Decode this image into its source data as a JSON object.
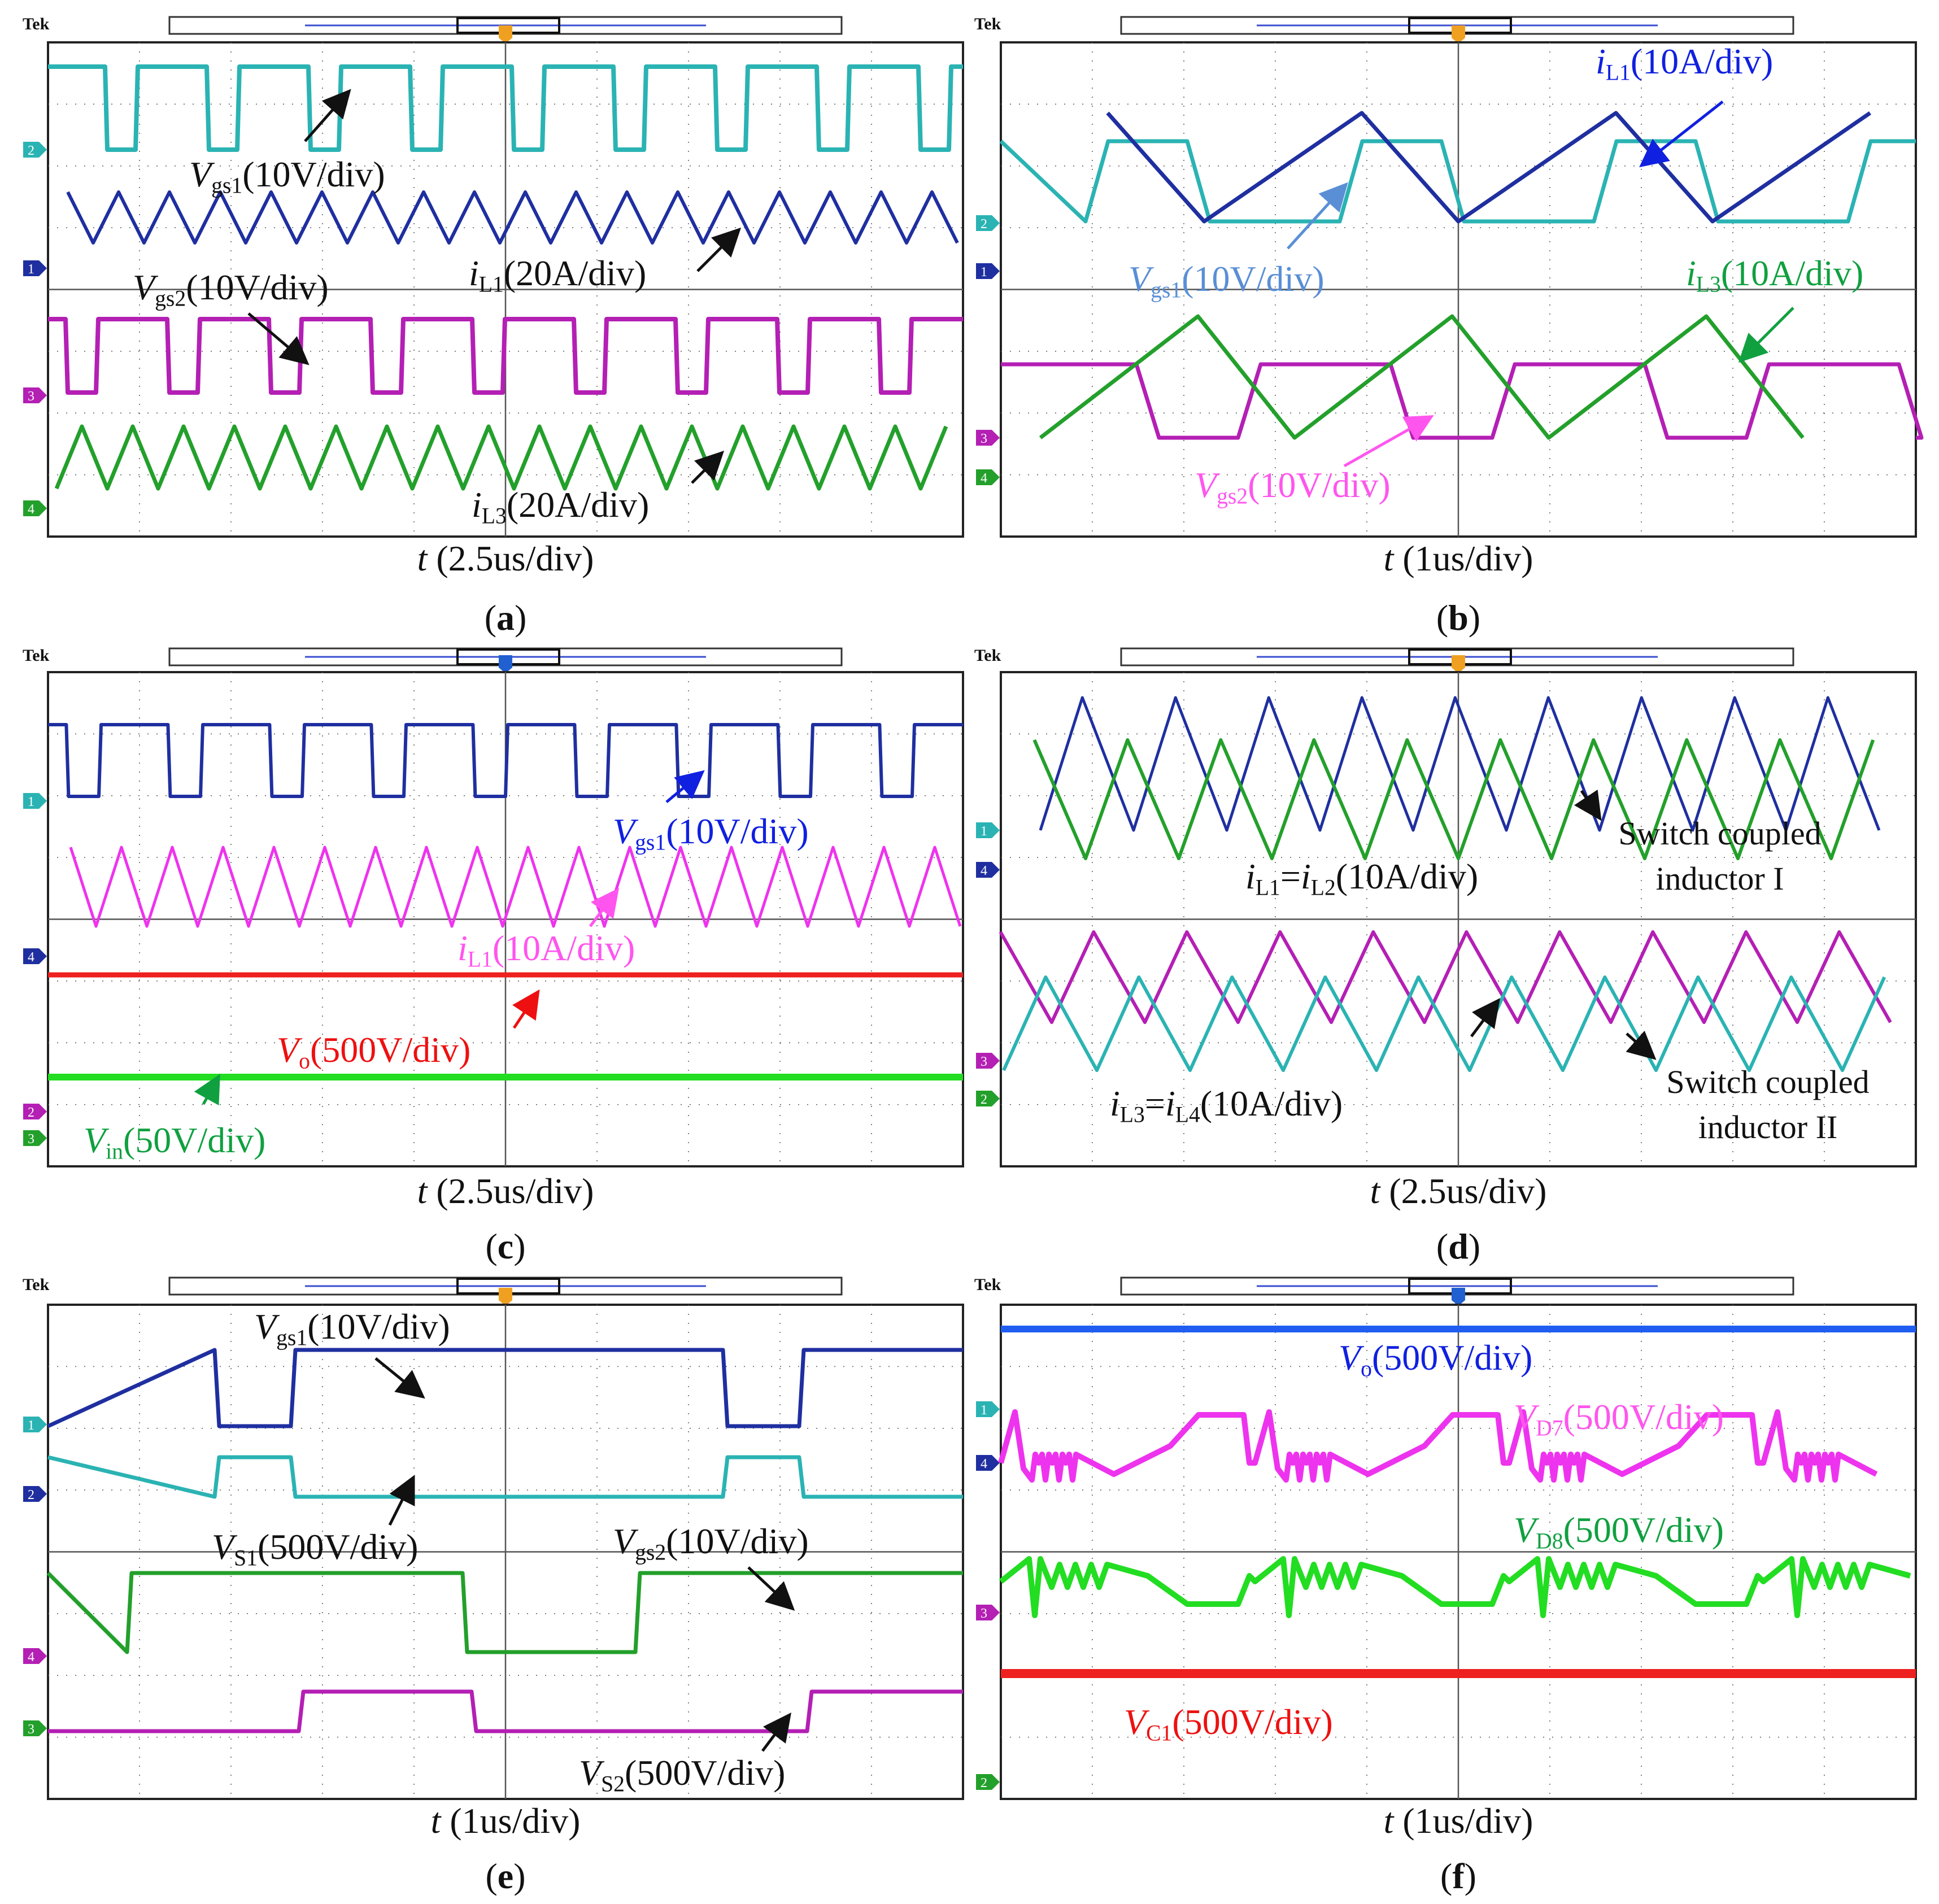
{
  "figure": {
    "tek_label": "Tek",
    "colors": {
      "blue": "#1f2fa0",
      "lightblue": "#0000ee",
      "cyan": "#2bb3b3",
      "magenta": "#b41fb4",
      "pink": "#ee33ee",
      "green": "#23a02b",
      "lightgreen": "#22dd22",
      "red": "#ee2020",
      "grid": "#555555",
      "marker_orange": "#f0a020",
      "marker_blue": "#2060d0"
    },
    "panels": [
      {
        "id": "a",
        "caption": "a",
        "time_label": "t",
        "time_div": " (2.5us/div)",
        "channel_markers": [
          "2",
          "1",
          "3",
          "4"
        ],
        "annotations": [
          {
            "key": "vgs1",
            "main": "V",
            "sub": "gs1",
            "rest": "(10V/div)",
            "italic_main": true
          },
          {
            "key": "il1",
            "main": "i",
            "sub": "L1",
            "rest": "(20A/div)",
            "italic_main": true
          },
          {
            "key": "vgs2",
            "main": "V",
            "sub": "gs2",
            "rest": "(10V/div)",
            "italic_main": true
          },
          {
            "key": "il3",
            "main": "i",
            "sub": "L3",
            "rest": "(20A/div)",
            "italic_main": true
          }
        ]
      },
      {
        "id": "b",
        "caption": "b",
        "time_label": "t",
        "time_div": " (1us/div)",
        "channel_markers": [
          "2",
          "1",
          "3",
          "4"
        ],
        "annotations": [
          {
            "key": "il1",
            "main": "i",
            "sub": "L1",
            "rest": "(10A/div)"
          },
          {
            "key": "vgs1",
            "main": "V",
            "sub": "gs1",
            "rest": "(10V/div)"
          },
          {
            "key": "il3",
            "main": "i",
            "sub": "L3",
            "rest": "(10A/div)"
          },
          {
            "key": "vgs2",
            "main": "V",
            "sub": "gs2",
            "rest": "(10V/div)"
          }
        ]
      },
      {
        "id": "c",
        "caption": "c",
        "time_label": "t",
        "time_div": " (2.5us/div)",
        "channel_markers": [
          "1",
          "4",
          "2",
          "3"
        ],
        "annotations": [
          {
            "key": "vgs1",
            "main": "V",
            "sub": "gs1",
            "rest": "(10V/div)"
          },
          {
            "key": "il1",
            "main": "i",
            "sub": "L1",
            "rest": "(10A/div)"
          },
          {
            "key": "vo",
            "main": "V",
            "sub": "o",
            "rest": "(500V/div)"
          },
          {
            "key": "vin",
            "main": "V",
            "sub": "in",
            "rest": "(50V/div)"
          }
        ]
      },
      {
        "id": "d",
        "caption": "d",
        "time_label": "t",
        "time_div": " (2.5us/div)",
        "channel_markers": [
          "1",
          "4",
          "3",
          "2"
        ],
        "annotations": [
          {
            "key": "il1il2",
            "main": "i",
            "sub": "L1",
            "mid": "=",
            "main2": "i",
            "sub2": "L2",
            "rest": "(10A/div)"
          },
          {
            "key": "il3il4",
            "main": "i",
            "sub": "L3",
            "mid": "=",
            "main2": "i",
            "sub2": "L4",
            "rest": "(10A/div)"
          }
        ],
        "notes": [
          {
            "key": "sci1_line1",
            "text": "Switch coupled"
          },
          {
            "key": "sci1_line2",
            "text": "inductor I"
          },
          {
            "key": "sci2_line1",
            "text": "Switch coupled"
          },
          {
            "key": "sci2_line2",
            "text": "inductor II"
          }
        ]
      },
      {
        "id": "e",
        "caption": "e",
        "time_label": "t",
        "time_div": " (1us/div)",
        "channel_markers": [
          "1",
          "2",
          "4",
          "3"
        ],
        "annotations": [
          {
            "key": "vgs1",
            "main": "V",
            "sub": "gs1",
            "rest": "(10V/div)"
          },
          {
            "key": "vs1",
            "main": "V",
            "sub": "S1",
            "rest": "(500V/div)"
          },
          {
            "key": "vgs2",
            "main": "V",
            "sub": "gs2",
            "rest": "(10V/div)"
          },
          {
            "key": "vs2",
            "main": "V",
            "sub": "S2",
            "rest": "(500V/div)"
          }
        ]
      },
      {
        "id": "f",
        "caption": "f",
        "time_label": "t",
        "time_div": " (1us/div)",
        "channel_markers": [
          "1",
          "4",
          "3",
          "2"
        ],
        "annotations": [
          {
            "key": "vo",
            "main": "V",
            "sub": "o",
            "rest": "(500V/div)"
          },
          {
            "key": "vd7",
            "main": "V",
            "sub": "D7",
            "rest": "(500V/div)"
          },
          {
            "key": "vd8",
            "main": "V",
            "sub": "D8",
            "rest": "(500V/div)"
          },
          {
            "key": "vc1",
            "main": "V",
            "sub": "C1",
            "rest": "(500V/div)"
          }
        ]
      }
    ]
  }
}
